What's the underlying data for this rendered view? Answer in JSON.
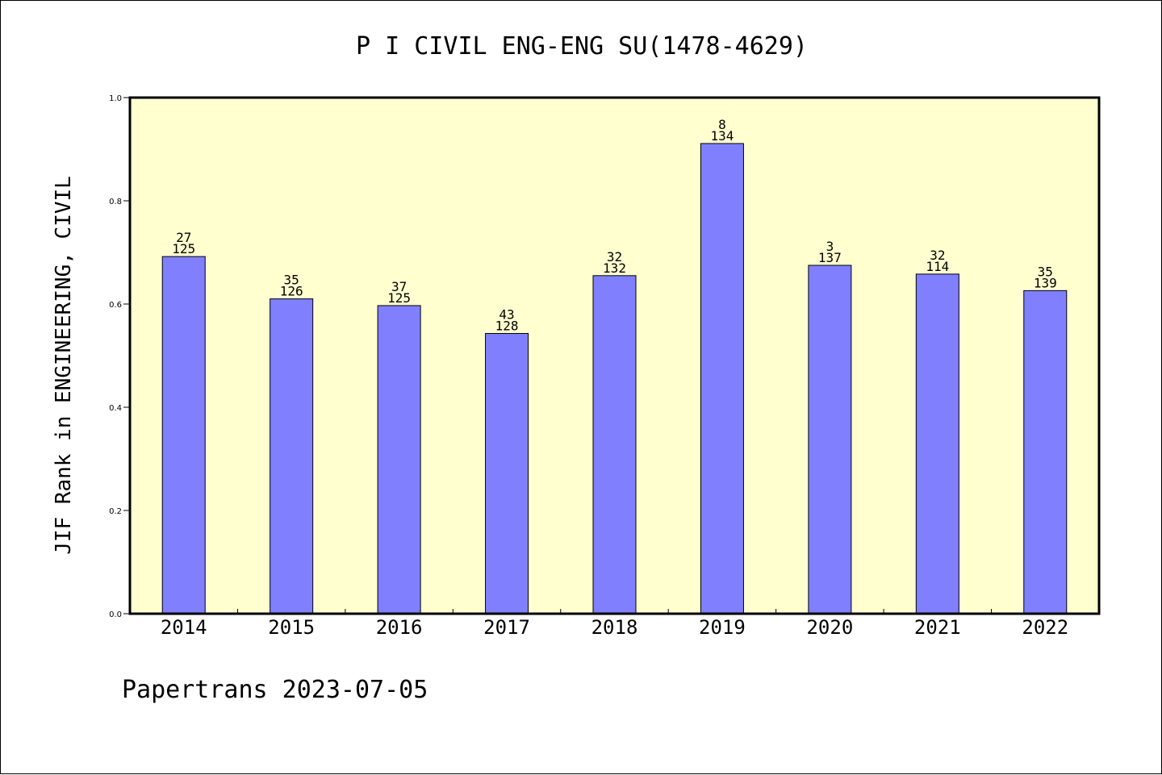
{
  "chart_data": {
    "type": "bar",
    "title": "P I CIVIL ENG-ENG SU(1478-4629)",
    "xlabel": "",
    "ylabel": "JIF Rank in ENGINEERING, CIVIL",
    "categories": [
      "2014",
      "2015",
      "2016",
      "2017",
      "2018",
      "2019",
      "2020",
      "2021",
      "2022"
    ],
    "values": [
      0.692,
      0.61,
      0.597,
      0.543,
      0.655,
      0.911,
      0.675,
      0.658,
      0.626
    ],
    "rank": [
      "27",
      "35",
      "37",
      "43",
      "32",
      "8",
      "3",
      "32",
      "35"
    ],
    "total": [
      "125",
      "126",
      "125",
      "128",
      "132",
      "134",
      "137",
      "114",
      "139"
    ],
    "ylim": [
      0.0,
      1.0
    ],
    "yticks": [
      "0.0",
      "0.2",
      "0.4",
      "0.6",
      "0.8",
      "1.0"
    ],
    "grid": false,
    "colors": {
      "plot_background": "#ffffd0",
      "bar_fill": "#8080ff",
      "bar_stroke": "#000000"
    }
  },
  "footer": "Papertrans 2023-07-05"
}
